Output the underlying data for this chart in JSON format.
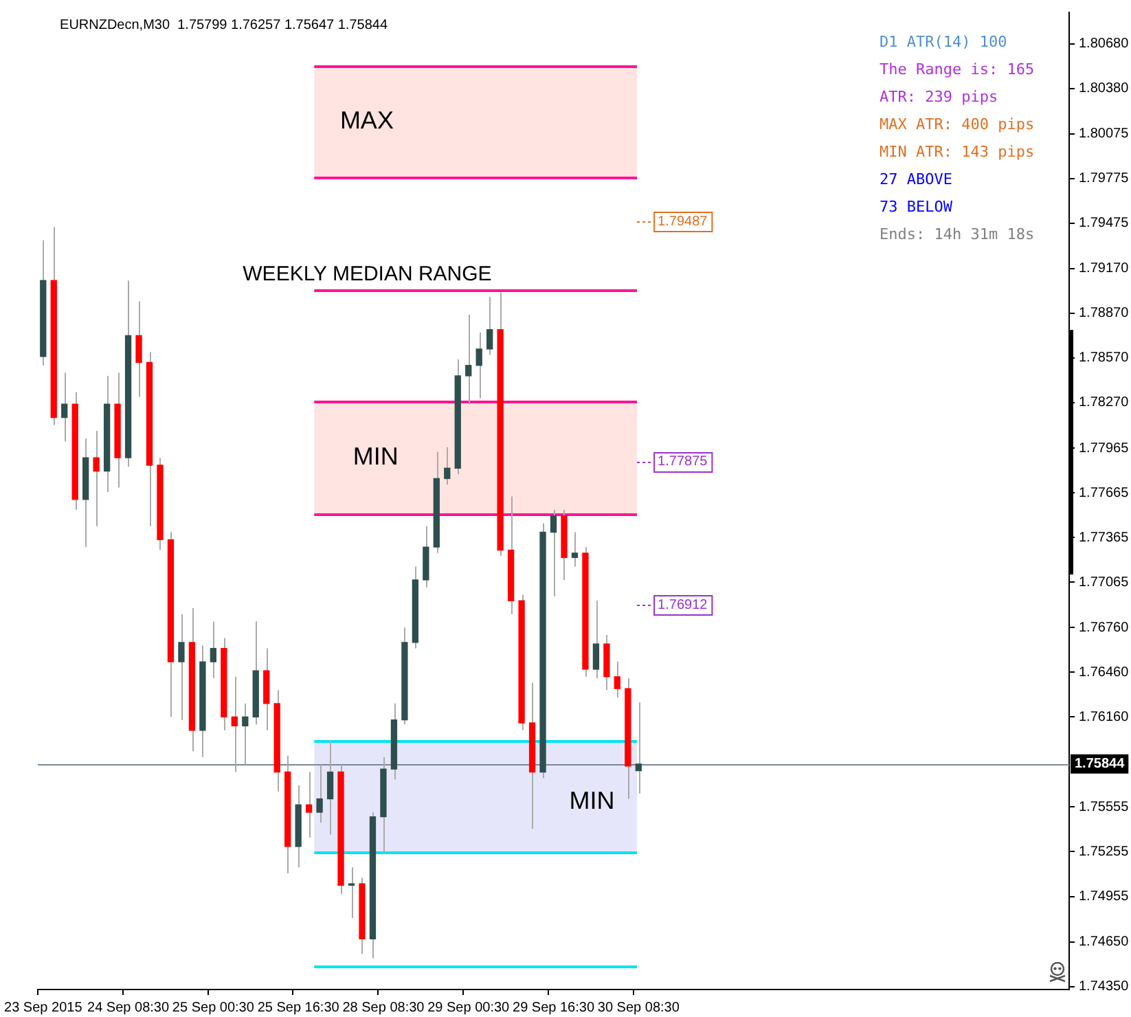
{
  "chart_data": {
    "type": "candlestick",
    "title": "EURNZDecn,M30  1.75799 1.76257 1.75647 1.75844",
    "categories": [
      "23 Sep 2015",
      null,
      null,
      null,
      null,
      null,
      null,
      null,
      "24 Sep 08:30",
      null,
      null,
      null,
      null,
      null,
      null,
      null,
      "25 Sep 00:30",
      null,
      null,
      null,
      null,
      null,
      null,
      null,
      "25 Sep 16:30",
      null,
      null,
      null,
      null,
      null,
      null,
      null,
      "28 Sep 08:30",
      null,
      null,
      null,
      null,
      null,
      null,
      null,
      "29 Sep 00:30",
      null,
      null,
      null,
      null,
      null,
      null,
      null,
      "29 Sep 16:30",
      null,
      null,
      null,
      null,
      null,
      null,
      null,
      "30 Sep 08:30",
      null,
      null,
      null,
      null,
      null,
      null,
      null,
      null,
      null,
      null,
      null,
      null,
      null,
      null,
      null,
      null,
      null,
      null,
      null,
      null,
      null,
      null,
      null,
      null,
      null,
      null,
      null,
      null,
      null,
      null,
      null,
      null,
      null,
      null,
      null,
      null,
      null,
      null,
      null,
      null
    ],
    "ohlc": [
      [
        1.7858,
        1.7936,
        1.7852,
        1.7909
      ],
      [
        1.7909,
        1.7945,
        1.7812,
        1.7817
      ],
      [
        1.7817,
        1.7847,
        1.7801,
        1.7826
      ],
      [
        1.7826,
        1.7834,
        1.7755,
        1.7762
      ],
      [
        1.7762,
        1.7803,
        1.773,
        1.779
      ],
      [
        1.779,
        1.7808,
        1.7744,
        1.7781
      ],
      [
        1.7781,
        1.7845,
        1.7767,
        1.7826
      ],
      [
        1.7826,
        1.7847,
        1.777,
        1.779
      ],
      [
        1.779,
        1.7909,
        1.7784,
        1.7872
      ],
      [
        1.7872,
        1.7895,
        1.7831,
        1.7854
      ],
      [
        1.7854,
        1.7861,
        1.7744,
        1.7785
      ],
      [
        1.7785,
        1.779,
        1.7728,
        1.7735
      ],
      [
        1.7735,
        1.774,
        1.7616,
        1.7653
      ],
      [
        1.7653,
        1.7685,
        1.7614,
        1.7666
      ],
      [
        1.7666,
        1.7689,
        1.7593,
        1.7607
      ],
      [
        1.7607,
        1.7664,
        1.7589,
        1.7653
      ],
      [
        1.7653,
        1.768,
        1.7642,
        1.7662
      ],
      [
        1.7662,
        1.7669,
        1.7607,
        1.7616
      ],
      [
        1.7616,
        1.7643,
        1.7579,
        1.761
      ],
      [
        1.761,
        1.7625,
        1.7584,
        1.7616
      ],
      [
        1.7616,
        1.768,
        1.7611,
        1.7647
      ],
      [
        1.7647,
        1.7662,
        1.7607,
        1.7625
      ],
      [
        1.7625,
        1.7634,
        1.7566,
        1.7579
      ],
      [
        1.7579,
        1.759,
        1.7511,
        1.7529
      ],
      [
        1.7529,
        1.757,
        1.7515,
        1.7557
      ],
      [
        1.7557,
        1.7579,
        1.7535,
        1.7552
      ],
      [
        1.7552,
        1.7584,
        1.7545,
        1.7561
      ],
      [
        1.7561,
        1.76,
        1.7537,
        1.7579
      ],
      [
        1.7579,
        1.7584,
        1.7497,
        1.7503
      ],
      [
        1.7503,
        1.7515,
        1.7481,
        1.7504
      ],
      [
        1.7504,
        1.7508,
        1.7457,
        1.7467
      ],
      [
        1.7467,
        1.7552,
        1.7454,
        1.7549
      ],
      [
        1.7549,
        1.7589,
        1.7525,
        1.7581
      ],
      [
        1.7581,
        1.7625,
        1.7574,
        1.7614
      ],
      [
        1.7614,
        1.7676,
        1.7611,
        1.7666
      ],
      [
        1.7666,
        1.7717,
        1.7662,
        1.7708
      ],
      [
        1.7708,
        1.7744,
        1.7703,
        1.773
      ],
      [
        1.773,
        1.7794,
        1.7726,
        1.7776
      ],
      [
        1.7776,
        1.7797,
        1.7772,
        1.7783
      ],
      [
        1.7783,
        1.7856,
        1.7779,
        1.7845
      ],
      [
        1.7845,
        1.7886,
        1.7826,
        1.7852
      ],
      [
        1.7852,
        1.7874,
        1.783,
        1.7863
      ],
      [
        1.7863,
        1.7898,
        1.7859,
        1.7876
      ],
      [
        1.7876,
        1.7901,
        1.7724,
        1.7728
      ],
      [
        1.7728,
        1.7764,
        1.7685,
        1.7694
      ],
      [
        1.7694,
        1.7698,
        1.7607,
        1.7612
      ],
      [
        1.7612,
        1.7639,
        1.7541,
        1.7579
      ],
      [
        1.7579,
        1.7746,
        1.7575,
        1.774
      ],
      [
        1.774,
        1.7755,
        1.7697,
        1.7751
      ],
      [
        1.7751,
        1.7755,
        1.7708,
        1.7723
      ],
      [
        1.7723,
        1.774,
        1.7717,
        1.7726
      ],
      [
        1.7726,
        1.773,
        1.7643,
        1.7648
      ],
      [
        1.7648,
        1.7694,
        1.7642,
        1.7665
      ],
      [
        1.7665,
        1.7671,
        1.7634,
        1.7643
      ],
      [
        1.7643,
        1.7653,
        1.7629,
        1.7635
      ],
      [
        1.7635,
        1.7642,
        1.7561,
        1.7583
      ],
      [
        1.75799,
        1.76257,
        1.75647,
        1.75844
      ],
      null,
      null,
      null,
      null,
      null,
      null,
      null,
      null,
      null,
      null,
      null,
      null,
      null,
      null,
      null,
      null,
      null,
      null,
      null,
      null,
      null,
      null,
      null,
      null,
      null,
      null,
      null,
      null,
      null,
      null,
      null,
      null,
      null,
      null,
      null,
      null,
      null,
      null,
      null,
      null
    ],
    "ylim": [
      1.7433,
      1.8089
    ],
    "yticks": [
      {
        "value": 1.8068,
        "label": "1.80680"
      },
      {
        "value": 1.8038,
        "label": "1.80380"
      },
      {
        "value": 1.80075,
        "label": "1.80075"
      },
      {
        "value": 1.79775,
        "label": "1.79775"
      },
      {
        "value": 1.79475,
        "label": "1.79475"
      },
      {
        "value": 1.7917,
        "label": "1.79170"
      },
      {
        "value": 1.7887,
        "label": "1.78870"
      },
      {
        "value": 1.7857,
        "label": "1.78570"
      },
      {
        "value": 1.7827,
        "label": "1.78270"
      },
      {
        "value": 1.77965,
        "label": "1.77965"
      },
      {
        "value": 1.77665,
        "label": "1.77665"
      },
      {
        "value": 1.77365,
        "label": "1.77365"
      },
      {
        "value": 1.77065,
        "label": "1.77065"
      },
      {
        "value": 1.7676,
        "label": "1.76760"
      },
      {
        "value": 1.7646,
        "label": "1.76460"
      },
      {
        "value": 1.7616,
        "label": "1.76160"
      },
      {
        "value": 1.75555,
        "label": "1.75555"
      },
      {
        "value": 1.75255,
        "label": "1.75255"
      },
      {
        "value": 1.74955,
        "label": "1.74955"
      },
      {
        "value": 1.7465,
        "label": "1.74650"
      },
      {
        "value": 1.7435,
        "label": "1.74350"
      }
    ],
    "bands": [
      {
        "axis": "y",
        "from": 1.7978,
        "to": 1.8053,
        "label": "MAX",
        "color": "#ffe4e1"
      },
      {
        "axis": "y",
        "from": 1.7752,
        "to": 1.7828,
        "label": "MIN",
        "color": "#ffe4e1"
      },
      {
        "axis": "y",
        "from": 1.7525,
        "to": 1.76,
        "label": "MIN",
        "color": "#e6e6fa"
      }
    ],
    "ref_lines": [
      {
        "axis": "y",
        "value": 1.75844,
        "label": "1.75844",
        "color": "#778899"
      },
      {
        "axis": "y",
        "value": 1.8053,
        "color": "#ff1493"
      },
      {
        "axis": "y",
        "value": 1.7978,
        "color": "#ff1493"
      },
      {
        "axis": "y",
        "value": 1.7903,
        "label": "WEEKLY MEDIAN RANGE",
        "color": "#ff1493"
      },
      {
        "axis": "y",
        "value": 1.7828,
        "color": "#ff1493"
      },
      {
        "axis": "y",
        "value": 1.7752,
        "color": "#ff1493"
      },
      {
        "axis": "y",
        "value": 1.76,
        "color": "#00e5ee"
      },
      {
        "axis": "y",
        "value": 1.7525,
        "color": "#00e5ee"
      },
      {
        "axis": "y",
        "value": 1.7449,
        "color": "#00e5ee"
      }
    ],
    "annotations": [
      "D1 ATR(14) 100",
      "The Range is: 165",
      "ATR: 239 pips",
      "MAX ATR: 400 pips",
      "MIN ATR: 143 pips",
      "27 ABOVE",
      "73 BELOW",
      "Ends: 14h 31m 18s",
      {
        "text": "1.79487",
        "y": 1.79487
      },
      {
        "text": "1.77875",
        "y": 1.77875
      },
      {
        "text": "1.76912",
        "y": 1.76912
      }
    ]
  }
}
